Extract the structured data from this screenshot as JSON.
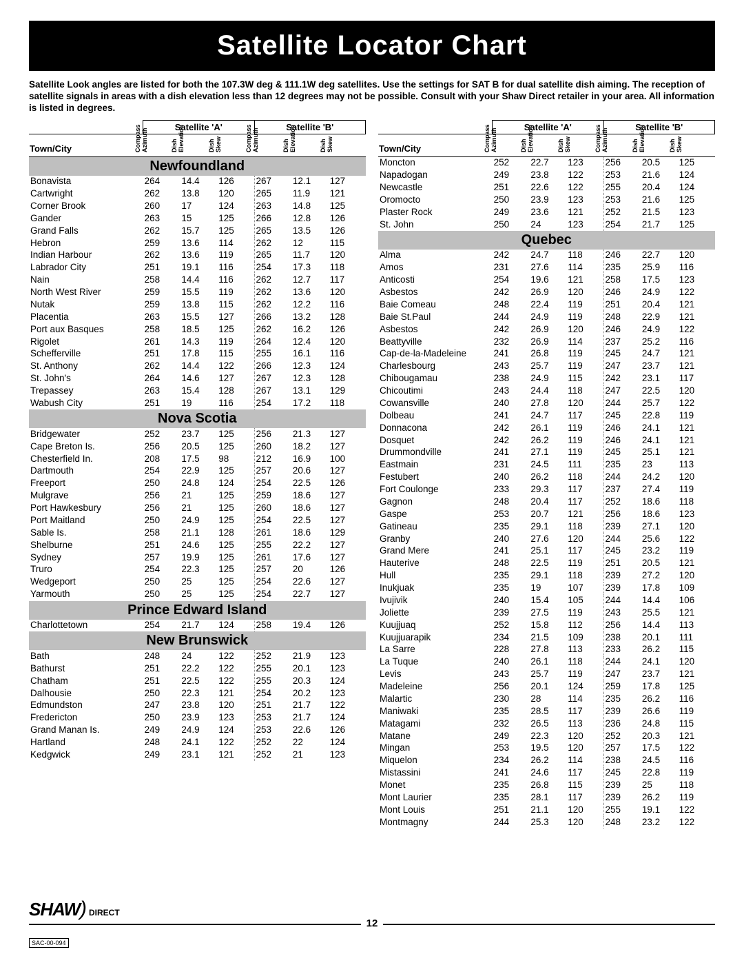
{
  "title": "Satellite Locator Chart",
  "intro": "Satellite Look angles are listed for both the 107.3W deg & 111.1W deg satellites. Use the settings for SAT B for dual satellite dish aiming. The reception of satellite signals in areas with a dish elevation less than 12 degrees may not be possible. Consult with your Shaw Direct retailer in your area. All information is listed in degrees.",
  "sat_a": "Satellite 'A'",
  "sat_b": "Satellite 'B'",
  "col_town": "Town/City",
  "col_compass": "Compass\nAzimuth",
  "col_elev": "Dish\nElevation",
  "col_skew": "Dish\nSkew",
  "logo_main": "SHAW",
  "logo_sub": "DIRECT",
  "page_number": "12",
  "doc_code": "SAC-00-094",
  "left_sections": [
    {
      "region": "Newfoundland",
      "rows": [
        [
          "Bonavista",
          "264",
          "14.4",
          "126",
          "267",
          "12.1",
          "127"
        ],
        [
          "Cartwright",
          "262",
          "13.8",
          "120",
          "265",
          "11.9",
          "121"
        ],
        [
          "Corner Brook",
          "260",
          "17",
          "124",
          "263",
          "14.8",
          "125"
        ],
        [
          "Gander",
          "263",
          "15",
          "125",
          "266",
          "12.8",
          "126"
        ],
        [
          "Grand Falls",
          "262",
          "15.7",
          "125",
          "265",
          "13.5",
          "126"
        ],
        [
          "Hebron",
          "259",
          "13.6",
          "114",
          "262",
          "12",
          "115"
        ],
        [
          "Indian Harbour",
          "262",
          "13.6",
          "119",
          "265",
          "11.7",
          "120"
        ],
        [
          "Labrador City",
          "251",
          "19.1",
          "116",
          "254",
          "17.3",
          "118"
        ],
        [
          "Nain",
          "258",
          "14.4",
          "116",
          "262",
          "12.7",
          "117"
        ],
        [
          "North West River",
          "259",
          "15.5",
          "119",
          "262",
          "13.6",
          "120"
        ],
        [
          "Nutak",
          "259",
          "13.8",
          "115",
          "262",
          "12.2",
          "116"
        ],
        [
          "Placentia",
          "263",
          "15.5",
          "127",
          "266",
          "13.2",
          "128"
        ],
        [
          "Port aux Basques",
          "258",
          "18.5",
          "125",
          "262",
          "16.2",
          "126"
        ],
        [
          "Rigolet",
          "261",
          "14.3",
          "119",
          "264",
          "12.4",
          "120"
        ],
        [
          "Schefferville",
          "251",
          "17.8",
          "115",
          "255",
          "16.1",
          "116"
        ],
        [
          "St. Anthony",
          "262",
          "14.4",
          "122",
          "266",
          "12.3",
          "124"
        ],
        [
          "St. John's",
          "264",
          "14.6",
          "127",
          "267",
          "12.3",
          "128"
        ],
        [
          "Trepassey",
          "263",
          "15.4",
          "128",
          "267",
          "13.1",
          "129"
        ],
        [
          "Wabush City",
          "251",
          "19",
          "116",
          "254",
          "17.2",
          "118"
        ]
      ]
    },
    {
      "region": "Nova Scotia",
      "rows": [
        [
          "Bridgewater",
          "252",
          "23.7",
          "125",
          "256",
          "21.3",
          "127"
        ],
        [
          "Cape Breton Is.",
          "256",
          "20.5",
          "125",
          "260",
          "18.2",
          "127"
        ],
        [
          "Chesterfield In.",
          "208",
          "17.5",
          "98",
          "212",
          "16.9",
          "100"
        ],
        [
          "Dartmouth",
          "254",
          "22.9",
          "125",
          "257",
          "20.6",
          "127"
        ],
        [
          "Freeport",
          "250",
          "24.8",
          "124",
          "254",
          "22.5",
          "126"
        ],
        [
          "Mulgrave",
          "256",
          "21",
          "125",
          "259",
          "18.6",
          "127"
        ],
        [
          "Port Hawkesbury",
          "256",
          "21",
          "125",
          "260",
          "18.6",
          "127"
        ],
        [
          "Port Maitland",
          "250",
          "24.9",
          "125",
          "254",
          "22.5",
          "127"
        ],
        [
          "Sable Is.",
          "258",
          "21.1",
          "128",
          "261",
          "18.6",
          "129"
        ],
        [
          "Shelburne",
          "251",
          "24.6",
          "125",
          "255",
          "22.2",
          "127"
        ],
        [
          "Sydney",
          "257",
          "19.9",
          "125",
          "261",
          "17.6",
          "127"
        ],
        [
          "Truro",
          "254",
          "22.3",
          "125",
          "257",
          "20",
          "126"
        ],
        [
          "Wedgeport",
          "250",
          "25",
          "125",
          "254",
          "22.6",
          "127"
        ],
        [
          "Yarmouth",
          "250",
          "25",
          "125",
          "254",
          "22.7",
          "127"
        ]
      ]
    },
    {
      "region": "Prince Edward Island",
      "rows": [
        [
          "Charlottetown",
          "254",
          "21.7",
          "124",
          "258",
          "19.4",
          "126"
        ]
      ]
    },
    {
      "region": "New Brunswick",
      "rows": [
        [
          "Bath",
          "248",
          "24",
          "122",
          "252",
          "21.9",
          "123"
        ],
        [
          "Bathurst",
          "251",
          "22.2",
          "122",
          "255",
          "20.1",
          "123"
        ],
        [
          "Chatham",
          "251",
          "22.5",
          "122",
          "255",
          "20.3",
          "124"
        ],
        [
          "Dalhousie",
          "250",
          "22.3",
          "121",
          "254",
          "20.2",
          "123"
        ],
        [
          "Edmundston",
          "247",
          "23.8",
          "120",
          "251",
          "21.7",
          "122"
        ],
        [
          "Fredericton",
          "250",
          "23.9",
          "123",
          "253",
          "21.7",
          "124"
        ],
        [
          "Grand Manan Is.",
          "249",
          "24.9",
          "124",
          "253",
          "22.6",
          "126"
        ],
        [
          "Hartland",
          "248",
          "24.1",
          "122",
          "252",
          "22",
          "124"
        ],
        [
          "Kedgwick",
          "249",
          "23.1",
          "121",
          "252",
          "21",
          "123"
        ]
      ]
    }
  ],
  "right_preamble_rows": [
    [
      "Moncton",
      "252",
      "22.7",
      "123",
      "256",
      "20.5",
      "125"
    ],
    [
      "Napadogan",
      "249",
      "23.8",
      "122",
      "253",
      "21.6",
      "124"
    ],
    [
      "Newcastle",
      "251",
      "22.6",
      "122",
      "255",
      "20.4",
      "124"
    ],
    [
      "Oromocto",
      "250",
      "23.9",
      "123",
      "253",
      "21.6",
      "125"
    ],
    [
      "Plaster Rock",
      "249",
      "23.6",
      "121",
      "252",
      "21.5",
      "123"
    ],
    [
      "St. John",
      "250",
      "24",
      "123",
      "254",
      "21.7",
      "125"
    ]
  ],
  "right_sections": [
    {
      "region": "Quebec",
      "rows": [
        [
          "Alma",
          "242",
          "24.7",
          "118",
          "246",
          "22.7",
          "120"
        ],
        [
          "Amos",
          "231",
          "27.6",
          "114",
          "235",
          "25.9",
          "116"
        ],
        [
          "Anticosti",
          "254",
          "19.6",
          "121",
          "258",
          "17.5",
          "123"
        ],
        [
          "Asbestos",
          "242",
          "26.9",
          "120",
          "246",
          "24.9",
          "122"
        ],
        [
          "Baie Comeau",
          "248",
          "22.4",
          "119",
          "251",
          "20.4",
          "121"
        ],
        [
          "Baie St.Paul",
          "244",
          "24.9",
          "119",
          "248",
          "22.9",
          "121"
        ],
        [
          "Asbestos",
          "242",
          "26.9",
          "120",
          "246",
          "24.9",
          "122"
        ],
        [
          "Beattyville",
          "232",
          "26.9",
          "114",
          "237",
          "25.2",
          "116"
        ],
        [
          "Cap-de-la-Madeleine",
          "241",
          "26.8",
          "119",
          "245",
          "24.7",
          "121"
        ],
        [
          "Charlesbourg",
          "243",
          "25.7",
          "119",
          "247",
          "23.7",
          "121"
        ],
        [
          "Chibougamau",
          "238",
          "24.9",
          "115",
          "242",
          "23.1",
          "117"
        ],
        [
          "Chicoutimi",
          "243",
          "24.4",
          "118",
          "247",
          "22.5",
          "120"
        ],
        [
          "Cowansville",
          "240",
          "27.8",
          "120",
          "244",
          "25.7",
          "122"
        ],
        [
          "Dolbeau",
          "241",
          "24.7",
          "117",
          "245",
          "22.8",
          "119"
        ],
        [
          "Donnacona",
          "242",
          "26.1",
          "119",
          "246",
          "24.1",
          "121"
        ],
        [
          "Dosquet",
          "242",
          "26.2",
          "119",
          "246",
          "24.1",
          "121"
        ],
        [
          "Drummondville",
          "241",
          "27.1",
          "119",
          "245",
          "25.1",
          "121"
        ],
        [
          "Eastmain",
          "231",
          "24.5",
          "111",
          "235",
          "23",
          "113"
        ],
        [
          "Festubert",
          "240",
          "26.2",
          "118",
          "244",
          "24.2",
          "120"
        ],
        [
          "Fort Coulonge",
          "233",
          "29.3",
          "117",
          "237",
          "27.4",
          "119"
        ],
        [
          "Gagnon",
          "248",
          "20.4",
          "117",
          "252",
          "18.6",
          "118"
        ],
        [
          "Gaspe",
          "253",
          "20.7",
          "121",
          "256",
          "18.6",
          "123"
        ],
        [
          "Gatineau",
          "235",
          "29.1",
          "118",
          "239",
          "27.1",
          "120"
        ],
        [
          "Granby",
          "240",
          "27.6",
          "120",
          "244",
          "25.6",
          "122"
        ],
        [
          "Grand Mere",
          "241",
          "25.1",
          "117",
          "245",
          "23.2",
          "119"
        ],
        [
          "Hauterive",
          "248",
          "22.5",
          "119",
          "251",
          "20.5",
          "121"
        ],
        [
          "Hull",
          "235",
          "29.1",
          "118",
          "239",
          "27.2",
          "120"
        ],
        [
          "Inukjuak",
          "235",
          "19",
          "107",
          "239",
          "17.8",
          "109"
        ],
        [
          "Ivujivik",
          "240",
          "15.4",
          "105",
          "244",
          "14.4",
          "106"
        ],
        [
          "Joliette",
          "239",
          "27.5",
          "119",
          "243",
          "25.5",
          "121"
        ],
        [
          "Kuujjuaq",
          "252",
          "15.8",
          "112",
          "256",
          "14.4",
          "113"
        ],
        [
          "Kuujjuarapik",
          "234",
          "21.5",
          "109",
          "238",
          "20.1",
          "111"
        ],
        [
          "La Sarre",
          "228",
          "27.8",
          "113",
          "233",
          "26.2",
          "115"
        ],
        [
          "La Tuque",
          "240",
          "26.1",
          "118",
          "244",
          "24.1",
          "120"
        ],
        [
          "Levis",
          "243",
          "25.7",
          "119",
          "247",
          "23.7",
          "121"
        ],
        [
          "Madeleine",
          "256",
          "20.1",
          "124",
          "259",
          "17.8",
          "125"
        ],
        [
          "Malartic",
          "230",
          "28",
          "114",
          "235",
          "26.2",
          "116"
        ],
        [
          "Maniwaki",
          "235",
          "28.5",
          "117",
          "239",
          "26.6",
          "119"
        ],
        [
          "Matagami",
          "232",
          "26.5",
          "113",
          "236",
          "24.8",
          "115"
        ],
        [
          "Matane",
          "249",
          "22.3",
          "120",
          "252",
          "20.3",
          "121"
        ],
        [
          "Mingan",
          "253",
          "19.5",
          "120",
          "257",
          "17.5",
          "122"
        ],
        [
          "Miquelon",
          "234",
          "26.2",
          "114",
          "238",
          "24.5",
          "116"
        ],
        [
          "Mistassini",
          "241",
          "24.6",
          "117",
          "245",
          "22.8",
          "119"
        ],
        [
          "Monet",
          "235",
          "26.8",
          "115",
          "239",
          "25",
          "118"
        ],
        [
          "Mont Laurier",
          "235",
          "28.1",
          "117",
          "239",
          "26.2",
          "119"
        ],
        [
          "Mont Louis",
          "251",
          "21.1",
          "120",
          "255",
          "19.1",
          "122"
        ],
        [
          "Montmagny",
          "244",
          "25.3",
          "120",
          "248",
          "23.2",
          "122"
        ]
      ]
    }
  ]
}
